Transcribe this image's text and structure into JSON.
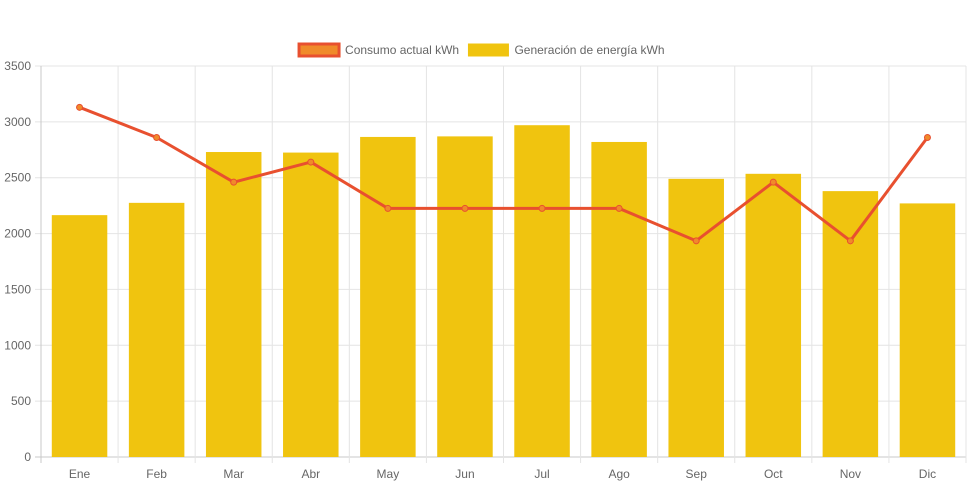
{
  "chart_data": {
    "type": "bar",
    "categories": [
      "Ene",
      "Feb",
      "Mar",
      "Abr",
      "May",
      "Jun",
      "Jul",
      "Ago",
      "Sep",
      "Oct",
      "Nov",
      "Dic"
    ],
    "series": [
      {
        "name": "Consumo actual kWh",
        "type": "line",
        "color": "#e8502f",
        "point_fill": "#f08a2a",
        "values": [
          3130,
          2860,
          2460,
          2640,
          2225,
          2225,
          2225,
          2225,
          1935,
          2460,
          1935,
          2860
        ]
      },
      {
        "name": "Generación de energía kWh",
        "type": "bar",
        "color": "#f0c40f",
        "values": [
          2165,
          2275,
          2730,
          2725,
          2865,
          2870,
          2970,
          2820,
          2490,
          2535,
          2380,
          2270
        ]
      }
    ],
    "ylim": [
      0,
      3500
    ],
    "yticks": [
      0,
      500,
      1000,
      1500,
      2000,
      2500,
      3000,
      3500
    ],
    "grid": true,
    "legend_position": "top-center",
    "title": "",
    "xlabel": "",
    "ylabel": ""
  }
}
